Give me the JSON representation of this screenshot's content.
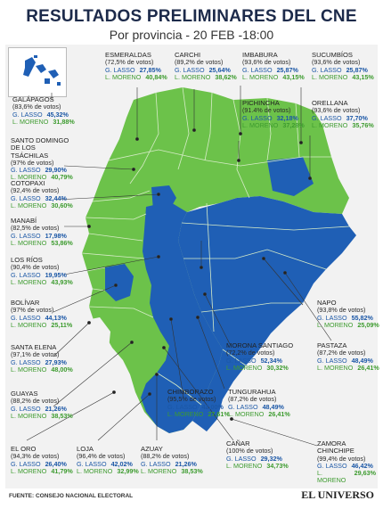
{
  "header": {
    "title": "RESULTADOS PRELIMINARES DEL CNE",
    "subtitle": "Por provincia - 20 FEB -18:00"
  },
  "candidates": {
    "a": "G. LASSO",
    "b": "L. MORENO"
  },
  "colors": {
    "lasso": "#1f5fb5",
    "moreno": "#6cc24a",
    "border": "#d7ecc8",
    "background": "#f2f2f2"
  },
  "provinces": [
    {
      "name": "GALÁPAGOS",
      "votes": "(83,6% de votos)",
      "lasso": "45,32%",
      "moreno": "31,88%",
      "winner": "lasso"
    },
    {
      "name": "ESMERALDAS",
      "votes": "(72,5% de votos)",
      "lasso": "27,85%",
      "moreno": "40,84%",
      "winner": "moreno"
    },
    {
      "name": "CARCHI",
      "votes": "(89,2% de votos)",
      "lasso": "25,64%",
      "moreno": "38,62%",
      "winner": "moreno"
    },
    {
      "name": "IMBABURA",
      "votes": "(93,6% de votos)",
      "lasso": "25,87%",
      "moreno": "43,15%",
      "winner": "moreno"
    },
    {
      "name": "SUCUMBÍOS",
      "votes": "(93,6% de votos)",
      "lasso": "25,87%",
      "moreno": "43,15%",
      "winner": "moreno"
    },
    {
      "name": "PICHINCHA",
      "votes": "(91.4% de votos)",
      "lasso": "32,18%",
      "moreno": "37,28%",
      "winner": "moreno"
    },
    {
      "name": "ORELLANA",
      "votes": "(93,6% de votos)",
      "lasso": "37,70%",
      "moreno": "35,76%",
      "winner": "lasso"
    },
    {
      "name": "SANTO DOMINGO DE LOS TSÁCHILAS",
      "votes": "(97% de votos)",
      "lasso": "29,90%",
      "moreno": "40,79%",
      "winner": "moreno"
    },
    {
      "name": "COTOPAXI",
      "votes": "(92,4% de votos)",
      "lasso": "32,44%",
      "moreno": "30,60%",
      "winner": "lasso"
    },
    {
      "name": "MANABÍ",
      "votes": "(82,5% de votos)",
      "lasso": "17,98%",
      "moreno": "53,86%",
      "winner": "moreno"
    },
    {
      "name": "LOS RÍOS",
      "votes": "(90,4% de votos)",
      "lasso": "19,95%",
      "moreno": "43,93%",
      "winner": "moreno"
    },
    {
      "name": "BOLÍVAR",
      "votes": "(97% de votos)",
      "lasso": "44,13%",
      "moreno": "25,11%",
      "winner": "lasso"
    },
    {
      "name": "NAPO",
      "votes": "(93,8% de votos)",
      "lasso": "55,82%",
      "moreno": "25,09%",
      "winner": "lasso"
    },
    {
      "name": "SANTA ELENA",
      "votes": "(97,1% de votos)",
      "lasso": "27,93%",
      "moreno": "48,00%",
      "winner": "moreno"
    },
    {
      "name": "MORONA SANTIAGO",
      "votes": "(72,2% de votos)",
      "lasso": "52,34%",
      "moreno": "30,32%",
      "winner": "lasso"
    },
    {
      "name": "PASTAZA",
      "votes": "(87,2% de votos)",
      "lasso": "48,49%",
      "moreno": "26,41%",
      "winner": "lasso"
    },
    {
      "name": "GUAYAS",
      "votes": "(88,2% de votos)",
      "lasso": "21,26%",
      "moreno": "38,53%",
      "winner": "moreno"
    },
    {
      "name": "CHIMBORAZO",
      "votes": "(95,5% de votos)",
      "lasso": "42,00%",
      "moreno": "27,61%",
      "winner": "lasso"
    },
    {
      "name": "TUNGURAHUA",
      "votes": "(87,2% de votos)",
      "lasso": "48,49%",
      "moreno": "26,41%",
      "winner": "lasso"
    },
    {
      "name": "ZAMORA CHINCHIPE",
      "votes": "(99,4% de votos)",
      "lasso": "46,42%",
      "moreno": "29,63%",
      "winner": "lasso"
    },
    {
      "name": "EL ORO",
      "votes": "(94,3% de votos)",
      "lasso": "26,40%",
      "moreno": "41,79%",
      "winner": "moreno"
    },
    {
      "name": "LOJA",
      "votes": "(96,4% de votos)",
      "lasso": "42,02%",
      "moreno": "32,99%",
      "winner": "lasso"
    },
    {
      "name": "AZUAY",
      "votes": "(88,2% de votos)",
      "lasso": "21,26%",
      "moreno": "38,53%",
      "winner": "moreno"
    },
    {
      "name": "CAÑAR",
      "votes": "(100% de votos)",
      "lasso": "29,32%",
      "moreno": "34,73%",
      "winner": "moreno"
    }
  ],
  "footer": {
    "source": "FUENTE: CONSEJO NACIONAL ELECTORAL",
    "brand": "EL UNIVERSO"
  }
}
